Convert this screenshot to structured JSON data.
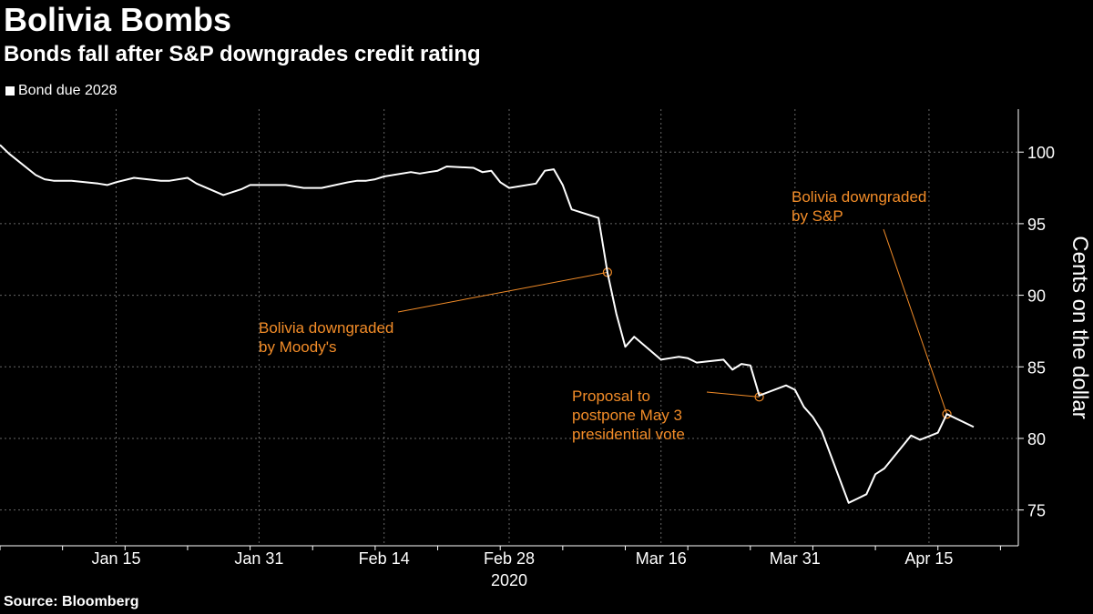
{
  "header": {
    "title": "Bolivia Bombs",
    "subtitle": "Bonds fall after S&P downgrades credit rating"
  },
  "source": "Source: Bloomberg",
  "colors": {
    "background": "#000000",
    "line": "#ffffff",
    "annotation": "#f28c28",
    "grid": "#666666"
  },
  "chart_data": {
    "type": "line",
    "title": "Bolivia Bombs",
    "subtitle": "Bonds fall after S&P downgrades credit rating",
    "xlabel": "2020",
    "ylabel": "Cents on the dollar",
    "ylim": [
      72.5,
      103
    ],
    "yticks": [
      75,
      80,
      85,
      90,
      95,
      100
    ],
    "xlim": [
      "2020-01-02",
      "2020-04-25"
    ],
    "xticks": [
      {
        "date": "2020-01-15",
        "label": "Jan 15"
      },
      {
        "date": "2020-01-31",
        "label": "Jan 31"
      },
      {
        "date": "2020-02-14",
        "label": "Feb 14"
      },
      {
        "date": "2020-02-28",
        "label": "Feb 28"
      },
      {
        "date": "2020-03-16",
        "label": "Mar 16"
      },
      {
        "date": "2020-03-31",
        "label": "Mar 31"
      },
      {
        "date": "2020-04-15",
        "label": "Apr 15"
      }
    ],
    "grid": true,
    "legend": "top-left",
    "series": [
      {
        "name": "Bond due 2028",
        "points": [
          [
            "2020-01-02",
            100.5
          ],
          [
            "2020-01-03",
            99.9
          ],
          [
            "2020-01-04",
            99.4
          ],
          [
            "2020-01-06",
            98.4
          ],
          [
            "2020-01-07",
            98.1
          ],
          [
            "2020-01-08",
            98.0
          ],
          [
            "2020-01-10",
            98.0
          ],
          [
            "2020-01-13",
            97.8
          ],
          [
            "2020-01-14",
            97.7
          ],
          [
            "2020-01-15",
            97.9
          ],
          [
            "2020-01-17",
            98.2
          ],
          [
            "2020-01-20",
            98.0
          ],
          [
            "2020-01-21",
            98.0
          ],
          [
            "2020-01-23",
            98.2
          ],
          [
            "2020-01-24",
            97.8
          ],
          [
            "2020-01-27",
            97.0
          ],
          [
            "2020-01-29",
            97.4
          ],
          [
            "2020-01-30",
            97.7
          ],
          [
            "2020-02-03",
            97.7
          ],
          [
            "2020-02-04",
            97.6
          ],
          [
            "2020-02-05",
            97.5
          ],
          [
            "2020-02-06",
            97.5
          ],
          [
            "2020-02-07",
            97.5
          ],
          [
            "2020-02-10",
            97.9
          ],
          [
            "2020-02-11",
            98.0
          ],
          [
            "2020-02-12",
            98.0
          ],
          [
            "2020-02-13",
            98.1
          ],
          [
            "2020-02-14",
            98.3
          ],
          [
            "2020-02-17",
            98.6
          ],
          [
            "2020-02-18",
            98.5
          ],
          [
            "2020-02-19",
            98.6
          ],
          [
            "2020-02-20",
            98.7
          ],
          [
            "2020-02-21",
            99.0
          ],
          [
            "2020-02-24",
            98.9
          ],
          [
            "2020-02-25",
            98.6
          ],
          [
            "2020-02-26",
            98.7
          ],
          [
            "2020-02-27",
            97.9
          ],
          [
            "2020-02-28",
            97.5
          ],
          [
            "2020-03-02",
            97.8
          ],
          [
            "2020-03-03",
            98.7
          ],
          [
            "2020-03-04",
            98.8
          ],
          [
            "2020-03-05",
            97.7
          ],
          [
            "2020-03-06",
            96.0
          ],
          [
            "2020-03-09",
            95.4
          ],
          [
            "2020-03-10",
            91.6
          ],
          [
            "2020-03-11",
            88.7
          ],
          [
            "2020-03-12",
            86.4
          ],
          [
            "2020-03-13",
            87.1
          ],
          [
            "2020-03-16",
            85.5
          ],
          [
            "2020-03-17",
            85.6
          ],
          [
            "2020-03-18",
            85.7
          ],
          [
            "2020-03-19",
            85.6
          ],
          [
            "2020-03-20",
            85.3
          ],
          [
            "2020-03-23",
            85.5
          ],
          [
            "2020-03-24",
            84.8
          ],
          [
            "2020-03-25",
            85.2
          ],
          [
            "2020-03-26",
            85.1
          ],
          [
            "2020-03-27",
            83.0
          ],
          [
            "2020-03-30",
            83.7
          ],
          [
            "2020-03-31",
            83.4
          ],
          [
            "2020-04-01",
            82.2
          ],
          [
            "2020-04-02",
            81.5
          ],
          [
            "2020-04-03",
            80.5
          ],
          [
            "2020-04-06",
            75.5
          ],
          [
            "2020-04-07",
            75.8
          ],
          [
            "2020-04-08",
            76.1
          ],
          [
            "2020-04-09",
            77.5
          ],
          [
            "2020-04-10",
            77.9
          ],
          [
            "2020-04-13",
            80.2
          ],
          [
            "2020-04-14",
            79.9
          ],
          [
            "2020-04-16",
            80.4
          ],
          [
            "2020-04-17",
            81.7
          ],
          [
            "2020-04-20",
            80.8
          ]
        ]
      }
    ],
    "annotations": [
      {
        "lines": [
          "Bolivia downgraded",
          "by Moody's"
        ],
        "date": "2020-03-10",
        "value": 91.6
      },
      {
        "lines": [
          "Proposal to",
          "postpone May 3",
          "presidential vote"
        ],
        "date": "2020-03-27",
        "value": 82.9
      },
      {
        "lines": [
          "Bolivia downgraded",
          "by S&P"
        ],
        "date": "2020-04-17",
        "value": 81.7
      }
    ]
  }
}
